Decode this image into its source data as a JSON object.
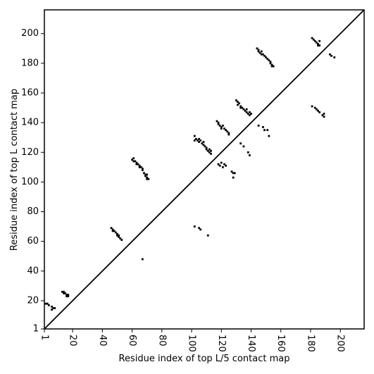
{
  "chart_data": {
    "type": "scatter",
    "x_label": "Residue index of top L/5 contact map",
    "y_label": "Residue index of top L contact map",
    "xlim": [
      1,
      216
    ],
    "ylim": [
      1,
      216
    ],
    "xticks": [
      1,
      20,
      40,
      60,
      80,
      100,
      120,
      140,
      160,
      180,
      200
    ],
    "yticks": [
      1,
      20,
      40,
      60,
      80,
      100,
      120,
      140,
      160,
      180,
      200
    ],
    "diagonal": true,
    "series": [
      {
        "color": "#000000",
        "x": [
          2,
          3,
          4,
          6,
          7,
          6,
          8,
          13,
          14,
          14,
          15,
          16,
          16,
          17,
          17,
          46,
          47,
          47,
          48,
          49,
          50,
          50,
          51,
          51,
          52,
          53,
          60,
          61,
          61,
          62,
          63,
          63,
          64,
          65,
          65,
          66,
          67,
          67,
          68,
          69,
          69,
          70,
          70,
          71,
          70,
          102,
          102,
          103,
          104,
          105,
          105,
          106,
          107,
          108,
          108,
          109,
          110,
          110,
          111,
          112,
          112,
          113,
          113,
          117,
          118,
          118,
          119,
          120,
          120,
          121,
          122,
          123,
          124,
          125,
          125,
          130,
          131,
          131,
          132,
          133,
          133,
          134,
          135,
          136,
          137,
          137,
          138,
          139,
          139,
          140,
          144,
          145,
          145,
          146,
          147,
          147,
          148,
          149,
          150,
          151,
          152,
          153,
          153,
          154,
          154,
          155,
          181,
          182,
          183,
          184,
          185,
          186,
          186,
          185,
          67,
          102,
          105,
          106,
          111,
          118,
          119,
          120,
          121,
          122,
          123,
          127,
          128,
          128,
          129,
          133,
          135,
          138,
          139,
          145,
          148,
          149,
          151,
          152,
          181,
          183,
          184,
          185,
          186,
          188,
          189,
          189,
          193,
          194,
          196
        ],
        "y": [
          18,
          18,
          17,
          16,
          15,
          14,
          15,
          26,
          26,
          25,
          25,
          24,
          23,
          23,
          24,
          69,
          68,
          67,
          67,
          66,
          65,
          64,
          64,
          63,
          62,
          61,
          115,
          116,
          114,
          114,
          113,
          112,
          112,
          111,
          110,
          110,
          109,
          108,
          106,
          105,
          104,
          105,
          103,
          102,
          102,
          131,
          128,
          129,
          128,
          127,
          129,
          128,
          126,
          125,
          127,
          124,
          123,
          122,
          121,
          120,
          122,
          119,
          121,
          141,
          140,
          139,
          138,
          137,
          136,
          138,
          136,
          135,
          134,
          133,
          132,
          155,
          154,
          152,
          153,
          151,
          150,
          150,
          149,
          148,
          149,
          147,
          146,
          145,
          147,
          146,
          190,
          188,
          189,
          187,
          188,
          186,
          186,
          185,
          184,
          183,
          182,
          180,
          181,
          179,
          178,
          178,
          197,
          196,
          195,
          194,
          193,
          192,
          195,
          192,
          48,
          70,
          69,
          68,
          64,
          112,
          111,
          113,
          110,
          112,
          111,
          107,
          106,
          103,
          106,
          126,
          124,
          120,
          118,
          138,
          137,
          135,
          135,
          131,
          151,
          150,
          149,
          148,
          147,
          145,
          146,
          144,
          186,
          185,
          184
        ]
      }
    ]
  }
}
